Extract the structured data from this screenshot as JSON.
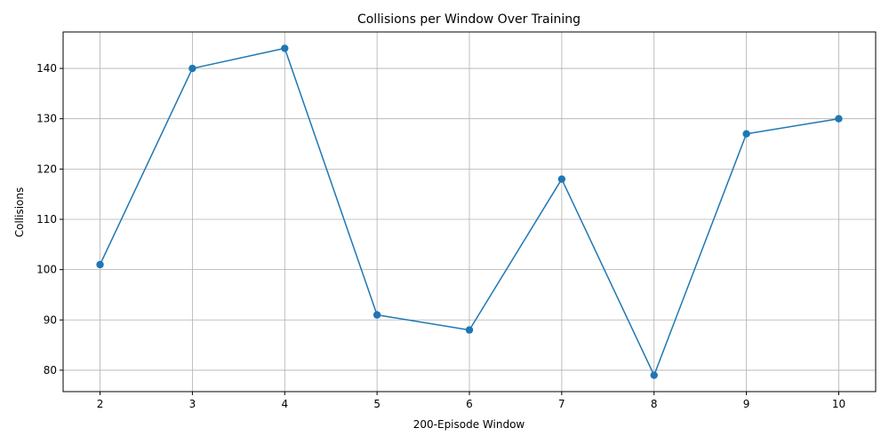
{
  "chart_data": {
    "type": "line",
    "title": "Collisions per Window Over Training",
    "xlabel": "200-Episode Window",
    "ylabel": "Collisions",
    "x": [
      2,
      3,
      4,
      5,
      6,
      7,
      8,
      9,
      10
    ],
    "series": [
      {
        "values": [
          101,
          140,
          144,
          91,
          88,
          118,
          79,
          127,
          130
        ]
      }
    ],
    "xlim": [
      1.6,
      10.4
    ],
    "ylim": [
      75.75,
      147.25
    ],
    "xticks": [
      2,
      3,
      4,
      5,
      6,
      7,
      8,
      9,
      10
    ],
    "yticks": [
      80,
      90,
      100,
      110,
      120,
      130,
      140
    ],
    "grid": true,
    "legend": "none",
    "colors": {
      "line": "#1f77b4",
      "grid": "#b0b0b0",
      "axis": "#000000"
    },
    "marker": "circle"
  }
}
